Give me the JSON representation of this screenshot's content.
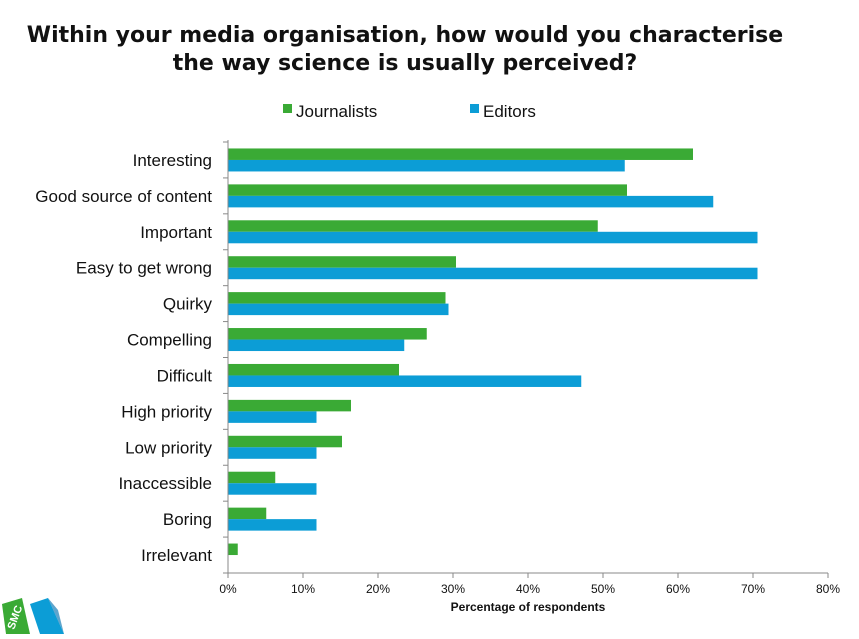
{
  "title_lines": [
    "Within your media organisation, how would you characterise",
    "the way science is usually perceived?"
  ],
  "logo": {
    "text": "SMC"
  },
  "chart_data": {
    "type": "bar",
    "orientation": "horizontal",
    "categories": [
      "Interesting",
      "Good source of content",
      "Important",
      "Easy to get wrong",
      "Quirky",
      "Compelling",
      "Difficult",
      "High priority",
      "Low priority",
      "Inaccessible",
      "Boring",
      "Irrelevant"
    ],
    "series": [
      {
        "name": "Journalists",
        "color": "#3aaa35",
        "values": [
          62,
          53.2,
          49.3,
          30.4,
          29,
          26.5,
          22.8,
          16.4,
          15.2,
          6.3,
          5.1,
          1.3
        ]
      },
      {
        "name": "Editors",
        "color": "#0c9dd6",
        "values": [
          52.9,
          64.7,
          70.6,
          70.6,
          29.4,
          23.5,
          47.1,
          11.8,
          11.8,
          11.8,
          11.8,
          0
        ]
      }
    ],
    "xlabel": "Percentage  of respondents",
    "ylabel": "",
    "xlim": [
      0,
      80
    ],
    "x_ticks": [
      "0%",
      "10%",
      "20%",
      "30%",
      "40%",
      "50%",
      "60%",
      "70%",
      "80%"
    ],
    "grid": false,
    "legend_position": "top"
  }
}
